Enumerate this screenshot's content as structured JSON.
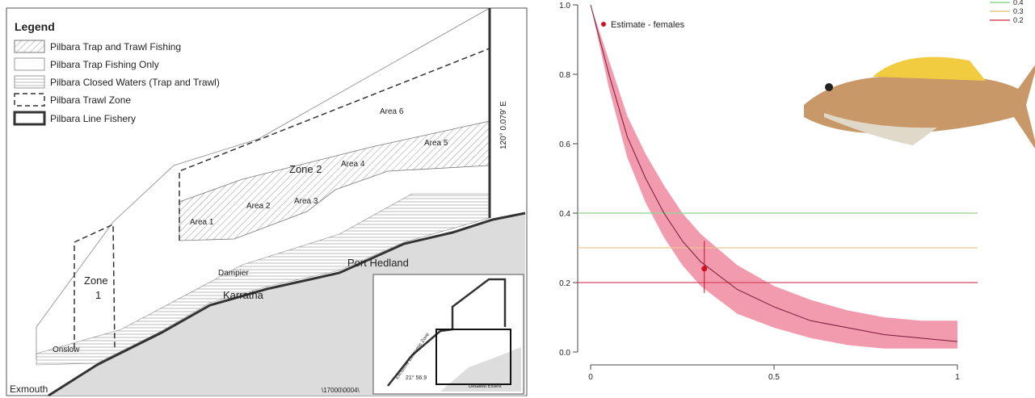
{
  "map": {
    "legend": {
      "title": "Legend",
      "items": [
        "Pilbara Trap and Trawl Fishing",
        "Pilbara Trap Fishing Only",
        "Pilbara Closed Waters (Trap and Trawl)",
        "Pilbara Trawl Zone",
        "Pilbara Line Fishery"
      ]
    },
    "areas": [
      "Area 1",
      "Area 2",
      "Area 3",
      "Area 4",
      "Area 5",
      "Area 6"
    ],
    "zone2": "Zone 2",
    "zone1": [
      "Zone",
      "1"
    ],
    "places": [
      "Dampier",
      "Karratha",
      "Port Hedland",
      "Onslow",
      "Exmouth"
    ],
    "meridian": "120° 0.079' E",
    "ref": "\\17000\\0004\\",
    "inset": {
      "eez": "Exclusive Economic Zone",
      "lat": "21° 56.9",
      "extent": "Detailed Extent"
    }
  },
  "chart_data": {
    "type": "line",
    "curve": {
      "x": [
        0,
        0.05,
        0.1,
        0.15,
        0.2,
        0.25,
        0.3,
        0.4,
        0.5,
        0.6,
        0.7,
        0.8,
        0.9,
        1.0
      ],
      "values": [
        1.0,
        0.8,
        0.62,
        0.5,
        0.4,
        0.32,
        0.26,
        0.18,
        0.13,
        0.09,
        0.07,
        0.05,
        0.04,
        0.03
      ],
      "upper": [
        1.0,
        0.84,
        0.68,
        0.57,
        0.48,
        0.4,
        0.34,
        0.25,
        0.19,
        0.15,
        0.12,
        0.1,
        0.09,
        0.09
      ],
      "lower": [
        1.0,
        0.76,
        0.56,
        0.43,
        0.33,
        0.25,
        0.19,
        0.11,
        0.07,
        0.04,
        0.02,
        0.01,
        0.01,
        0.01
      ],
      "color": "#7a1a3a",
      "band_color": "#f08aa0"
    },
    "hlines": [
      {
        "value": 0.4,
        "color": "#8fd88f"
      },
      {
        "value": 0.3,
        "color": "#e8c890"
      },
      {
        "value": 0.2,
        "color": "#d84860"
      }
    ],
    "points": [
      {
        "name": "Estimate - females",
        "x": 0.31,
        "y": 0.24,
        "lower": 0.17,
        "upper": 0.32,
        "color": "#d01020"
      }
    ],
    "xlim": [
      0,
      1
    ],
    "ylim": [
      0,
      1
    ],
    "xticks": [
      0,
      0.5,
      1
    ],
    "yticks": [
      {
        "value": 0,
        "label": "0.0"
      },
      0.2,
      0.4,
      0.6,
      0.8,
      {
        "value": 1,
        "label": "1.0"
      }
    ]
  }
}
